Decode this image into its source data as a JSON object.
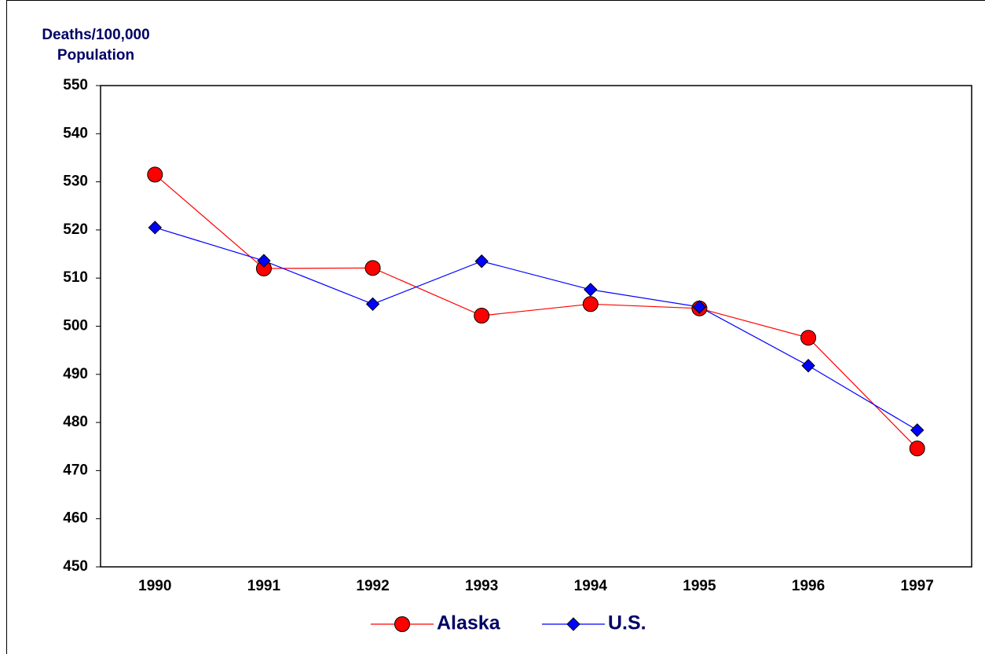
{
  "chart_data": {
    "type": "line",
    "y_label": [
      "Deaths/100,000",
      "Population"
    ],
    "categories": [
      "1990",
      "1991",
      "1992",
      "1993",
      "1994",
      "1995",
      "1996",
      "1997"
    ],
    "series": [
      {
        "name": "Alaska",
        "color": "#ff0000",
        "marker": "circle",
        "values": [
          531.5,
          512.0,
          512.1,
          502.2,
          504.6,
          503.7,
          497.6,
          474.6
        ]
      },
      {
        "name": "U.S.",
        "color": "#0000ff",
        "marker": "diamond",
        "values": [
          520.5,
          513.6,
          504.6,
          513.5,
          507.6,
          504.0,
          491.8,
          478.4
        ]
      }
    ],
    "ylim": [
      450,
      550
    ],
    "yticks": [
      450,
      460,
      470,
      480,
      490,
      500,
      510,
      520,
      530,
      540,
      550
    ]
  }
}
